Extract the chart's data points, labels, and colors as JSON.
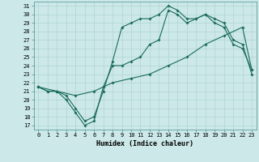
{
  "xlabel": "Humidex (Indice chaleur)",
  "bg_color": "#cce8e8",
  "grid_color": "#b0d4d4",
  "line_color": "#1a6b5a",
  "xlim": [
    -0.5,
    23.5
  ],
  "ylim": [
    16.5,
    31.5
  ],
  "yticks": [
    17,
    18,
    19,
    20,
    21,
    22,
    23,
    24,
    25,
    26,
    27,
    28,
    29,
    30,
    31
  ],
  "xticks": [
    0,
    1,
    2,
    3,
    4,
    5,
    6,
    7,
    8,
    9,
    10,
    11,
    12,
    13,
    14,
    15,
    16,
    17,
    18,
    19,
    20,
    21,
    22,
    23
  ],
  "line1_x": [
    0,
    1,
    2,
    3,
    4,
    5,
    6,
    7,
    8,
    9,
    10,
    11,
    12,
    13,
    14,
    15,
    16,
    17,
    18,
    19,
    20,
    21,
    22,
    23
  ],
  "line1_y": [
    21.5,
    21.0,
    21.0,
    20.5,
    19.0,
    17.5,
    18.0,
    21.0,
    24.5,
    28.5,
    29.0,
    29.5,
    29.5,
    30.0,
    31.0,
    30.5,
    29.5,
    29.5,
    30.0,
    29.0,
    28.5,
    26.5,
    26.0,
    23.5
  ],
  "line2_x": [
    0,
    1,
    2,
    3,
    4,
    5,
    6,
    7,
    8,
    9,
    10,
    11,
    12,
    13,
    14,
    15,
    16,
    17,
    18,
    19,
    20,
    21,
    22,
    23
  ],
  "line2_y": [
    21.5,
    21.0,
    21.0,
    20.0,
    18.5,
    17.0,
    17.5,
    21.5,
    24.0,
    24.0,
    24.5,
    25.0,
    26.5,
    27.0,
    30.5,
    30.0,
    29.0,
    29.5,
    30.0,
    29.5,
    29.0,
    27.0,
    26.5,
    23.0
  ],
  "line3_x": [
    0,
    2,
    4,
    6,
    8,
    10,
    12,
    14,
    16,
    18,
    20,
    22,
    23
  ],
  "line3_y": [
    21.5,
    21.0,
    20.5,
    21.0,
    22.0,
    22.5,
    23.0,
    24.0,
    25.0,
    26.5,
    27.5,
    28.5,
    23.5
  ]
}
